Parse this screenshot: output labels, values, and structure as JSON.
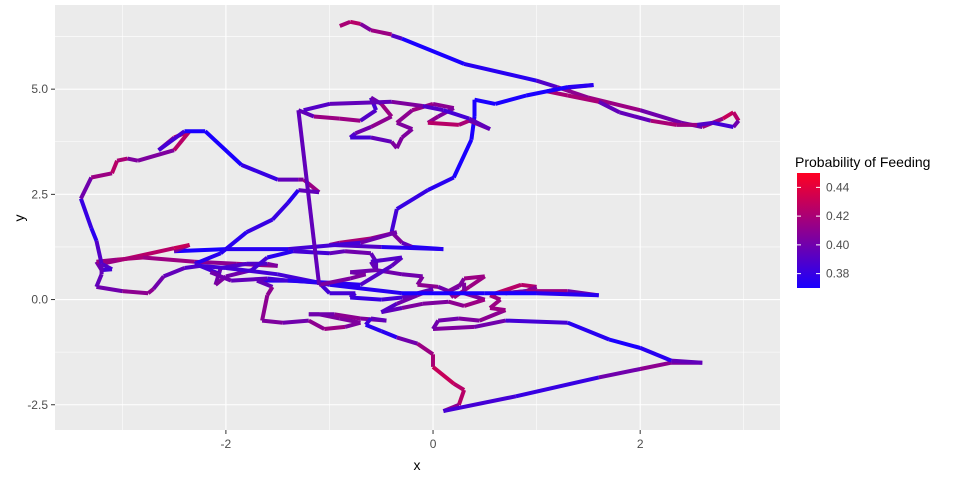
{
  "chart_data": {
    "type": "path",
    "xlabel": "x",
    "ylabel": "y",
    "xlim": [
      -3.65,
      3.35
    ],
    "ylim": [
      -3.1,
      7.0
    ],
    "x_ticks": [
      -2,
      0,
      2
    ],
    "x_tick_labels": [
      "-2",
      "0",
      "2"
    ],
    "y_ticks": [
      -2.5,
      0,
      2.5,
      5
    ],
    "y_tick_labels": [
      "-2.5",
      "0.0",
      "2.5",
      "5.0"
    ],
    "grid": true,
    "legend": {
      "title": "Probability of Feeding",
      "placement": "right",
      "range": [
        0.37,
        0.45
      ],
      "ticks": [
        0.38,
        0.4,
        0.42,
        0.44
      ],
      "tick_labels": [
        "0.38",
        "0.40",
        "0.42",
        "0.44"
      ],
      "low_color": "#1a00ff",
      "high_color": "#ff0022"
    },
    "path": [
      [
        -0.9,
        6.5,
        0.41
      ],
      [
        -0.8,
        6.6,
        0.43
      ],
      [
        -0.7,
        6.55,
        0.42
      ],
      [
        -0.6,
        6.4,
        0.39
      ],
      [
        -0.4,
        6.3,
        0.44
      ],
      [
        -0.4,
        6.28,
        0.41
      ],
      [
        -0.3,
        6.2,
        0.37
      ],
      [
        0.3,
        5.6,
        0.37
      ],
      [
        1.0,
        5.2,
        0.38
      ],
      [
        1.2,
        5.05,
        0.4
      ],
      [
        1.5,
        4.8,
        0.42
      ],
      [
        2.0,
        4.5,
        0.41
      ],
      [
        2.4,
        4.2,
        0.39
      ],
      [
        2.6,
        4.1,
        0.41
      ],
      [
        2.8,
        4.3,
        0.42
      ],
      [
        2.9,
        4.45,
        0.44
      ],
      [
        2.95,
        4.25,
        0.41
      ],
      [
        2.9,
        4.1,
        0.39
      ],
      [
        2.7,
        4.2,
        0.38
      ],
      [
        2.55,
        4.15,
        0.4
      ],
      [
        2.35,
        4.15,
        0.43
      ],
      [
        2.1,
        4.25,
        0.41
      ],
      [
        1.8,
        4.45,
        0.38
      ],
      [
        1.6,
        4.7,
        0.41
      ],
      [
        1.3,
        4.85,
        0.43
      ],
      [
        1.1,
        4.95,
        0.41
      ],
      [
        1.2,
        5.0,
        0.39
      ],
      [
        1.35,
        5.05,
        0.4
      ],
      [
        1.55,
        5.1,
        0.38
      ],
      [
        1.3,
        5.05,
        0.37
      ],
      [
        0.9,
        4.85,
        0.37
      ],
      [
        0.6,
        4.65,
        0.37
      ],
      [
        0.4,
        4.75,
        0.37
      ],
      [
        0.4,
        4.35,
        0.37
      ],
      [
        0.37,
        3.8,
        0.37
      ],
      [
        0.2,
        2.9,
        0.37
      ],
      [
        -0.05,
        2.6,
        0.38
      ],
      [
        -0.35,
        2.15,
        0.38
      ],
      [
        -0.4,
        1.6,
        0.39
      ],
      [
        -0.3,
        1.35,
        0.42
      ],
      [
        -0.2,
        1.25,
        0.37
      ],
      [
        0.1,
        1.2,
        0.37
      ],
      [
        -0.5,
        1.25,
        0.38
      ],
      [
        -1.0,
        1.3,
        0.4
      ],
      [
        -0.9,
        1.35,
        0.42
      ],
      [
        -0.6,
        1.45,
        0.42
      ],
      [
        -0.35,
        1.6,
        0.41
      ],
      [
        -0.7,
        1.35,
        0.39
      ],
      [
        -1.4,
        1.2,
        0.38
      ],
      [
        -2.0,
        1.2,
        0.37
      ],
      [
        -2.5,
        1.15,
        0.37
      ],
      [
        -2.35,
        1.3,
        0.44
      ],
      [
        -2.5,
        1.22,
        0.42
      ],
      [
        -3.0,
        0.95,
        0.43
      ],
      [
        -3.2,
        0.85,
        0.4
      ],
      [
        -3.1,
        0.72,
        0.38
      ],
      [
        -3.2,
        0.7,
        0.39
      ],
      [
        -3.25,
        0.9,
        0.41
      ],
      [
        -3.05,
        0.95,
        0.42
      ],
      [
        -2.8,
        1.0,
        0.42
      ],
      [
        -2.3,
        0.9,
        0.41
      ],
      [
        -1.9,
        0.85,
        0.41
      ],
      [
        -1.5,
        0.8,
        0.42
      ],
      [
        -1.6,
        0.85,
        0.39
      ],
      [
        -1.8,
        0.85,
        0.39
      ],
      [
        -2.05,
        0.75,
        0.39
      ],
      [
        -2.1,
        0.35,
        0.41
      ],
      [
        -2.0,
        0.55,
        0.4
      ],
      [
        -1.75,
        0.7,
        0.4
      ],
      [
        -1.6,
        1.0,
        0.37
      ],
      [
        -1.35,
        1.15,
        0.38
      ],
      [
        -1.0,
        1.1,
        0.39
      ],
      [
        -0.85,
        1.15,
        0.4
      ],
      [
        -0.6,
        1.1,
        0.4
      ],
      [
        -0.55,
        0.9,
        0.39
      ],
      [
        -0.55,
        0.7,
        0.4
      ],
      [
        -0.3,
        0.6,
        0.4
      ],
      [
        -0.1,
        0.55,
        0.4
      ],
      [
        -0.15,
        0.35,
        0.41
      ],
      [
        0.05,
        0.3,
        0.41
      ],
      [
        0.15,
        0.2,
        0.39
      ],
      [
        0.25,
        0.3,
        0.4
      ],
      [
        0.3,
        0.5,
        0.41
      ],
      [
        0.5,
        0.55,
        0.42
      ],
      [
        0.35,
        0.3,
        0.41
      ],
      [
        0.2,
        0.05,
        0.42
      ],
      [
        0.15,
        0.2,
        0.4
      ],
      [
        0.3,
        0.4,
        0.41
      ],
      [
        0.3,
        0.15,
        0.4
      ],
      [
        0.5,
        0.0,
        0.41
      ],
      [
        0.3,
        -0.15,
        0.42
      ],
      [
        0.15,
        -0.05,
        0.4
      ],
      [
        -0.1,
        -0.1,
        0.41
      ],
      [
        -0.3,
        -0.2,
        0.4
      ],
      [
        -0.5,
        -0.3,
        0.39
      ],
      [
        -0.35,
        -0.1,
        0.39
      ],
      [
        -0.15,
        0.1,
        0.41
      ],
      [
        0.0,
        0.25,
        0.4
      ],
      [
        -0.3,
        0.05,
        0.39
      ],
      [
        -0.5,
        0.0,
        0.38
      ],
      [
        -0.8,
        0.05,
        0.38
      ],
      [
        -0.75,
        0.15,
        0.39
      ],
      [
        -1.0,
        0.15,
        0.38
      ],
      [
        -1.1,
        0.4,
        0.39
      ],
      [
        -1.35,
        0.45,
        0.37
      ],
      [
        -1.7,
        0.45,
        0.38
      ],
      [
        -1.55,
        0.3,
        0.41
      ],
      [
        -1.6,
        0.1,
        0.41
      ],
      [
        -1.65,
        -0.5,
        0.41
      ],
      [
        -1.45,
        -0.55,
        0.4
      ],
      [
        -1.2,
        -0.5,
        0.4
      ],
      [
        -1.05,
        -0.7,
        0.42
      ],
      [
        -0.85,
        -0.65,
        0.41
      ],
      [
        -0.7,
        -0.55,
        0.4
      ],
      [
        -0.9,
        -0.45,
        0.41
      ],
      [
        -1.1,
        -0.35,
        0.4
      ],
      [
        -1.2,
        -0.35,
        0.39
      ],
      [
        -0.95,
        -0.35,
        0.41
      ],
      [
        -0.7,
        -0.45,
        0.41
      ],
      [
        -0.45,
        -0.5,
        0.4
      ],
      [
        -0.6,
        -0.45,
        0.39
      ],
      [
        -0.65,
        -0.6,
        0.38
      ],
      [
        -0.5,
        -0.75,
        0.37
      ],
      [
        -0.35,
        -0.9,
        0.38
      ],
      [
        -0.15,
        -1.05,
        0.42
      ],
      [
        0.0,
        -1.3,
        0.41
      ],
      [
        0.0,
        -1.6,
        0.43
      ],
      [
        0.2,
        -2.0,
        0.43
      ],
      [
        0.3,
        -2.15,
        0.42
      ],
      [
        0.25,
        -2.5,
        0.43
      ],
      [
        0.1,
        -2.65,
        0.39
      ],
      [
        0.8,
        -2.3,
        0.38
      ],
      [
        1.6,
        -1.85,
        0.38
      ],
      [
        2.0,
        -1.65,
        0.42
      ],
      [
        2.3,
        -1.5,
        0.4
      ],
      [
        2.6,
        -1.5,
        0.41
      ],
      [
        2.3,
        -1.45,
        0.38
      ],
      [
        2.0,
        -1.15,
        0.37
      ],
      [
        1.7,
        -0.95,
        0.37
      ],
      [
        1.3,
        -0.55,
        0.38
      ],
      [
        0.7,
        -0.5,
        0.39
      ],
      [
        0.4,
        -0.65,
        0.41
      ],
      [
        0.0,
        -0.7,
        0.4
      ],
      [
        0.05,
        -0.5,
        0.4
      ],
      [
        0.25,
        -0.45,
        0.4
      ],
      [
        0.45,
        -0.5,
        0.41
      ],
      [
        0.7,
        -0.25,
        0.41
      ],
      [
        0.55,
        -0.2,
        0.42
      ],
      [
        0.65,
        0.0,
        0.41
      ],
      [
        0.55,
        0.1,
        0.42
      ],
      [
        0.85,
        0.35,
        0.43
      ],
      [
        1.0,
        0.3,
        0.42
      ],
      [
        0.9,
        0.2,
        0.4
      ],
      [
        0.7,
        0.15,
        0.39
      ],
      [
        0.9,
        0.2,
        0.41
      ],
      [
        1.3,
        0.2,
        0.42
      ],
      [
        1.6,
        0.1,
        0.38
      ],
      [
        1.0,
        0.15,
        0.37
      ],
      [
        0.5,
        0.15,
        0.37
      ],
      [
        -0.3,
        0.15,
        0.37
      ],
      [
        -1.0,
        0.35,
        0.38
      ],
      [
        -1.5,
        0.6,
        0.39
      ],
      [
        -2.0,
        0.75,
        0.38
      ],
      [
        -2.25,
        0.8,
        0.39
      ],
      [
        -2.4,
        0.75,
        0.39
      ],
      [
        -2.6,
        0.55,
        0.4
      ],
      [
        -2.7,
        0.25,
        0.4
      ],
      [
        -2.75,
        0.15,
        0.42
      ],
      [
        -3.0,
        0.2,
        0.4
      ],
      [
        -3.25,
        0.3,
        0.4
      ],
      [
        -3.2,
        0.6,
        0.39
      ],
      [
        -3.2,
        0.85,
        0.4
      ],
      [
        -3.25,
        1.4,
        0.38
      ],
      [
        -3.3,
        1.7,
        0.37
      ],
      [
        -3.4,
        2.4,
        0.39
      ],
      [
        -3.3,
        2.9,
        0.41
      ],
      [
        -3.1,
        3.0,
        0.42
      ],
      [
        -3.05,
        3.3,
        0.43
      ],
      [
        -2.95,
        3.35,
        0.41
      ],
      [
        -2.85,
        3.3,
        0.4
      ],
      [
        -2.5,
        3.55,
        0.41
      ],
      [
        -2.35,
        4.0,
        0.44
      ],
      [
        -2.5,
        3.85,
        0.42
      ],
      [
        -2.65,
        3.55,
        0.4
      ],
      [
        -2.4,
        4.0,
        0.37
      ],
      [
        -2.2,
        4.0,
        0.37
      ],
      [
        -1.85,
        3.2,
        0.37
      ],
      [
        -1.5,
        2.85,
        0.39
      ],
      [
        -1.3,
        2.85,
        0.4
      ],
      [
        -1.25,
        2.85,
        0.41
      ],
      [
        -1.1,
        2.55,
        0.42
      ],
      [
        -1.3,
        2.6,
        0.37
      ],
      [
        -1.4,
        2.3,
        0.38
      ],
      [
        -1.55,
        1.9,
        0.38
      ],
      [
        -1.8,
        1.6,
        0.38
      ],
      [
        -2.05,
        1.1,
        0.37
      ],
      [
        -2.3,
        0.85,
        0.38
      ],
      [
        -2.05,
        0.6,
        0.39
      ],
      [
        -2.15,
        0.65,
        0.4
      ],
      [
        -1.95,
        0.45,
        0.4
      ],
      [
        -1.6,
        0.5,
        0.39
      ],
      [
        -1.4,
        0.45,
        0.38
      ],
      [
        -1.0,
        0.4,
        0.37
      ],
      [
        -0.7,
        0.35,
        0.38
      ],
      [
        -0.4,
        0.8,
        0.4
      ],
      [
        -0.3,
        1.0,
        0.39
      ],
      [
        -0.6,
        0.9,
        0.39
      ],
      [
        -0.55,
        0.7,
        0.4
      ],
      [
        -0.8,
        0.65,
        0.4
      ],
      [
        -0.65,
        0.6,
        0.4
      ],
      [
        -0.8,
        0.5,
        0.41
      ],
      [
        -1.1,
        0.35,
        0.4
      ],
      [
        -1.3,
        4.5,
        0.39
      ],
      [
        -1.15,
        4.35,
        0.4
      ],
      [
        -0.9,
        4.3,
        0.43
      ],
      [
        -0.7,
        4.25,
        0.4
      ],
      [
        -0.55,
        4.5,
        0.38
      ],
      [
        -0.6,
        4.8,
        0.39
      ],
      [
        -0.5,
        4.65,
        0.41
      ],
      [
        -0.4,
        4.35,
        0.42
      ],
      [
        -0.6,
        4.1,
        0.4
      ],
      [
        -0.75,
        3.95,
        0.4
      ],
      [
        -0.8,
        3.85,
        0.38
      ],
      [
        -0.6,
        3.85,
        0.39
      ],
      [
        -0.4,
        3.75,
        0.4
      ],
      [
        -0.35,
        3.6,
        0.41
      ],
      [
        -0.3,
        3.85,
        0.4
      ],
      [
        -0.2,
        4.05,
        0.41
      ],
      [
        -0.35,
        4.2,
        0.4
      ],
      [
        -0.2,
        4.5,
        0.42
      ],
      [
        0.0,
        4.65,
        0.41
      ],
      [
        0.2,
        4.55,
        0.41
      ],
      [
        0.05,
        4.35,
        0.4
      ],
      [
        -0.05,
        4.2,
        0.42
      ],
      [
        0.25,
        4.15,
        0.43
      ],
      [
        0.35,
        4.25,
        0.41
      ],
      [
        0.55,
        4.05,
        0.4
      ],
      [
        0.35,
        4.3,
        0.39
      ],
      [
        0.1,
        4.5,
        0.38
      ],
      [
        -0.1,
        4.6,
        0.4
      ],
      [
        -0.4,
        4.7,
        0.41
      ],
      [
        -1.0,
        4.65,
        0.38
      ],
      [
        -1.25,
        4.5,
        0.4
      ]
    ]
  }
}
